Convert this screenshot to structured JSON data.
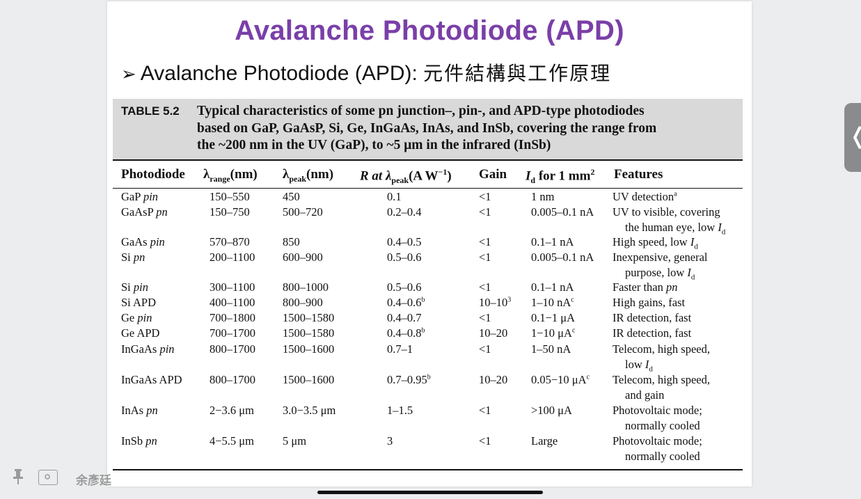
{
  "slide": {
    "title": "Avalanche Photodiode (APD)",
    "bullet_symbol": "➢",
    "bullet_text": "Avalanche Photodiode (APD): ",
    "bullet_cjk": "元件結構與工作原理"
  },
  "table": {
    "label": "TABLE 5.2",
    "caption_line1": "Typical characteristics of some pn junction–, pin-, and APD-type photodiodes",
    "caption_line2": "based on GaP, GaAsP, Si, Ge, InGaAs, InAs, and InSb, covering the range from",
    "caption_line3": "the ~200 nm in the UV (GaP), to ~5 μm in the infrared (InSb)",
    "headers": {
      "photodiode": "Photodiode",
      "range_lambda": "λ",
      "range_sub": "range",
      "range_unit": "(nm)",
      "peak_lambda": "λ",
      "peak_sub": "peak",
      "peak_unit": "(nm)",
      "r_prefix": "R at λ",
      "r_sub": "peak",
      "r_unit": "(A W",
      "r_sup": "−1",
      "r_close": ")",
      "gain": "Gain",
      "id_prefix": "I",
      "id_sub": "d",
      "id_text": " for 1 mm",
      "id_sup": "2",
      "features": "Features"
    },
    "rows": [
      {
        "name": "GaP",
        "type": "pin",
        "range": "150–550",
        "peak": "450",
        "r": "0.1",
        "r_sup": "",
        "gain": "<1",
        "gain_sup": "",
        "id": "1 nm",
        "id_sup": "",
        "feat1": "UV detection",
        "feat1_sup": "a",
        "feat2": ""
      },
      {
        "name": "GaAsP",
        "type": "pn",
        "range": "150–750",
        "peak": "500–720",
        "r": "0.2–0.4",
        "r_sup": "",
        "gain": "<1",
        "gain_sup": "",
        "id": "0.005–0.1 nA",
        "id_sup": "",
        "feat1": "UV to visible, covering",
        "feat1_sup": "",
        "feat2": "the human eye, low I"
      },
      {
        "name": "GaAs",
        "type": "pin",
        "range": "570–870",
        "peak": "850",
        "r": "0.4–0.5",
        "r_sup": "",
        "gain": "<1",
        "gain_sup": "",
        "id": "0.1–1 nA",
        "id_sup": "",
        "feat1": "High speed, low I",
        "feat1_sup": "",
        "feat2": ""
      },
      {
        "name": "Si",
        "type": "pn",
        "range": "200–1100",
        "peak": "600–900",
        "r": "0.5–0.6",
        "r_sup": "",
        "gain": "<1",
        "gain_sup": "",
        "id": "0.005–0.1 nA",
        "id_sup": "",
        "feat1": "Inexpensive, general",
        "feat1_sup": "",
        "feat2": "purpose, low I"
      },
      {
        "name": "Si",
        "type": "pin",
        "range": "300–1100",
        "peak": "800–1000",
        "r": "0.5–0.6",
        "r_sup": "",
        "gain": "<1",
        "gain_sup": "",
        "id": "0.1–1 nA",
        "id_sup": "",
        "feat1": "Faster than pn",
        "feat1_sup": "",
        "feat2": ""
      },
      {
        "name": "Si APD",
        "type": "",
        "range": "400–1100",
        "peak": "800–900",
        "r": "0.4–0.6",
        "r_sup": "b",
        "gain": "10–10",
        "gain_sup": "3",
        "id": "1–10 nA",
        "id_sup": "c",
        "feat1": "High gains, fast",
        "feat1_sup": "",
        "feat2": ""
      },
      {
        "name": "Ge",
        "type": "pin",
        "range": "700–1800",
        "peak": "1500–1580",
        "r": "0.4–0.7",
        "r_sup": "",
        "gain": "<1",
        "gain_sup": "",
        "id": "0.1−1 μA",
        "id_sup": "",
        "feat1": "IR detection, fast",
        "feat1_sup": "",
        "feat2": ""
      },
      {
        "name": "Ge APD",
        "type": "",
        "range": "700–1700",
        "peak": "1500–1580",
        "r": "0.4–0.8",
        "r_sup": "b",
        "gain": "10–20",
        "gain_sup": "",
        "id": "1−10 μA",
        "id_sup": "c",
        "feat1": "IR detection, fast",
        "feat1_sup": "",
        "feat2": ""
      },
      {
        "name": "InGaAs",
        "type": "pin",
        "range": "800–1700",
        "peak": "1500–1600",
        "r": "0.7–1",
        "r_sup": "",
        "gain": "<1",
        "gain_sup": "",
        "id": "1–50 nA",
        "id_sup": "",
        "feat1": "Telecom, high speed,",
        "feat1_sup": "",
        "feat2": "low I"
      },
      {
        "name": "InGaAs APD",
        "type": "",
        "range": "800–1700",
        "peak": "1500–1600",
        "r": "0.7–0.95",
        "r_sup": "b",
        "gain": "10–20",
        "gain_sup": "",
        "id": "0.05−10 μA",
        "id_sup": "c",
        "feat1": "Telecom, high speed,",
        "feat1_sup": "",
        "feat2": "and gain"
      },
      {
        "name": "InAs",
        "type": "pn",
        "range": "2−3.6 μm",
        "peak": "3.0−3.5 μm",
        "r": "1–1.5",
        "r_sup": "",
        "gain": "<1",
        "gain_sup": "",
        "id": ">100 μA",
        "id_sup": "",
        "feat1": "Photovoltaic mode;",
        "feat1_sup": "",
        "feat2": "normally cooled"
      },
      {
        "name": "InSb",
        "type": "pn",
        "range": "4−5.5 μm",
        "peak": "5 μm",
        "r": "3",
        "r_sup": "",
        "gain": "<1",
        "gain_sup": "",
        "id": "Large",
        "id_sup": "",
        "feat1": "Photovoltaic mode;",
        "feat1_sup": "",
        "feat2": "normally cooled"
      }
    ]
  },
  "side_tab": {
    "chevron": "❬"
  },
  "footer": {
    "watermark": "余彥廷"
  }
}
